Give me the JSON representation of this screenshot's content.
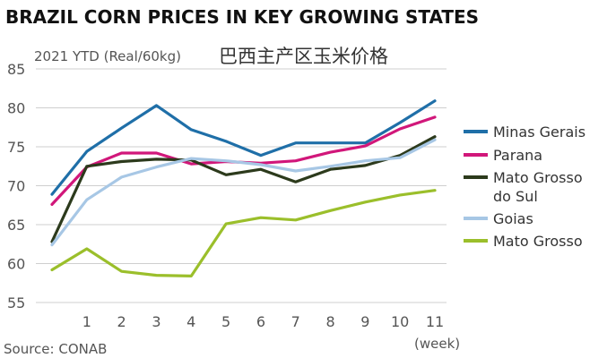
{
  "chart_data": {
    "type": "line",
    "title": "BRAZIL CORN PRICES IN KEY GROWING STATES",
    "subtitle": "2021 YTD (Real/60kg)",
    "subtitle_cn": "巴西主产区玉米价格",
    "source": "Source: CONAB",
    "x_unit_label": "(week)",
    "x": [
      0,
      1,
      2,
      3,
      4,
      5,
      6,
      7,
      8,
      9,
      10,
      11
    ],
    "xticks": [
      "1",
      "2",
      "3",
      "4",
      "5",
      "6",
      "7",
      "8",
      "9",
      "10",
      "11"
    ],
    "xlim": [
      0,
      11
    ],
    "ylim": [
      55,
      85
    ],
    "yticks": [
      55,
      60,
      65,
      70,
      75,
      80,
      85
    ],
    "grid": "horizontal",
    "legend_position": "right",
    "series": [
      {
        "name": "Minas Gerais",
        "color": "#1f6fa8",
        "values": [
          68.9,
          74.4,
          77.4,
          80.3,
          77.2,
          75.7,
          73.9,
          75.5,
          75.5,
          75.5,
          78.1,
          80.9
        ]
      },
      {
        "name": "Parana",
        "color": "#d1177a",
        "values": [
          67.6,
          72.4,
          74.2,
          74.2,
          72.8,
          73.1,
          72.9,
          73.2,
          74.3,
          75.1,
          77.3,
          78.8
        ]
      },
      {
        "name": "Mato Grosso do Sul",
        "legend_lines": [
          "Mato Grosso",
          "do Sul"
        ],
        "color": "#2c3a1c",
        "values": [
          62.8,
          72.5,
          73.1,
          73.4,
          73.3,
          71.4,
          72.1,
          70.5,
          72.1,
          72.6,
          73.9,
          76.3
        ]
      },
      {
        "name": "Goias",
        "color": "#a7c7e5",
        "values": [
          62.4,
          68.2,
          71.1,
          72.4,
          73.5,
          73.2,
          72.7,
          71.9,
          72.5,
          73.2,
          73.6,
          75.9
        ]
      },
      {
        "name": "Mato Grosso",
        "color": "#9bbf2b",
        "values": [
          59.2,
          61.9,
          59.0,
          58.5,
          58.4,
          65.1,
          65.9,
          65.6,
          66.8,
          67.9,
          68.8,
          69.4
        ]
      }
    ]
  }
}
